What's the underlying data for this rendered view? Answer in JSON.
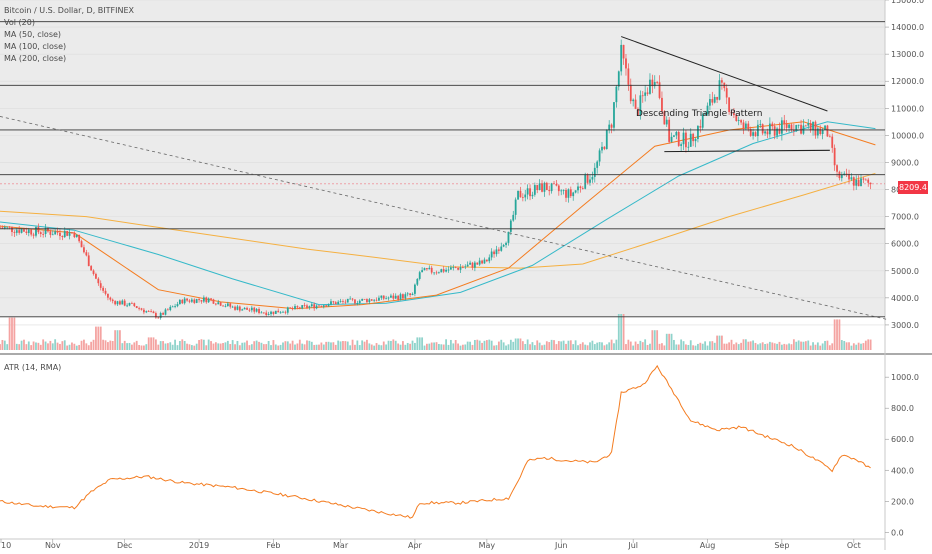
{
  "main_title": "Bitcoin / U.S. Dollar, D, BITFINEX",
  "indicators": [
    "Vol (20)",
    "MA (50, close)",
    "MA (100, close)",
    "MA (200, close)"
  ],
  "atr_title": "ATR (14, RMA)",
  "annotation": "Descending Triangle Pattern",
  "last_price": "8209.4",
  "colors": {
    "ma50": "#f47c20",
    "ma100": "#35b9c9",
    "ma200": "#f5b041",
    "candle_up": "#26a69a",
    "candle_down": "#ef5350",
    "vol_up": "#8fd3cb",
    "vol_down": "#f4a3a1",
    "atr": "#f47c20",
    "price_tag": "#f23645",
    "panel_bg": "#ebebeb"
  },
  "chart_data": [
    {
      "type": "candlestick",
      "title": "Bitcoin / U.S. Dollar, D, BITFINEX",
      "x_tick_labels": [
        "10",
        "Nov",
        "Dec",
        "2019",
        "Feb",
        "Mar",
        "Apr",
        "May",
        "Jun",
        "Jul",
        "Aug",
        "Sep",
        "Oct"
      ],
      "y_tick_labels": [
        "3000.0",
        "4000.0",
        "5000.0",
        "6000.0",
        "7000.0",
        "8000.0",
        "9000.0",
        "10000.0",
        "11000.0",
        "12000.0",
        "13000.0",
        "14000.0",
        "15000.0"
      ],
      "ylim": [
        2000,
        15000
      ],
      "scale": "linear",
      "grid": true,
      "last_price": 8209.4,
      "horizontal_levels": [
        14200,
        11850,
        10200,
        8550,
        6550,
        3300
      ],
      "triangle_top": [
        [
          "2019-06-26",
          13650
        ],
        [
          "2019-09-20",
          10900
        ]
      ],
      "triangle_base": [
        [
          "2019-07-14",
          9400
        ],
        [
          "2019-09-21",
          9450
        ]
      ],
      "trendline_dashed": [
        [
          "2018-10-10",
          10700
        ],
        [
          "2019-10-15",
          3200
        ]
      ],
      "price_path": [
        [
          "2018-10-10",
          6600
        ],
        [
          "2018-10-25",
          6450
        ],
        [
          "2018-11-10",
          6400
        ],
        [
          "2018-11-14",
          5700
        ],
        [
          "2018-11-20",
          4500
        ],
        [
          "2018-11-25",
          3900
        ],
        [
          "2018-12-05",
          3700
        ],
        [
          "2018-12-15",
          3300
        ],
        [
          "2018-12-25",
          3900
        ],
        [
          "2019-01-05",
          3950
        ],
        [
          "2019-01-15",
          3650
        ],
        [
          "2019-01-30",
          3450
        ],
        [
          "2019-02-10",
          3600
        ],
        [
          "2019-02-25",
          3800
        ],
        [
          "2019-03-15",
          3950
        ],
        [
          "2019-03-31",
          4100
        ],
        [
          "2019-04-03",
          4950
        ],
        [
          "2019-04-15",
          5050
        ],
        [
          "2019-04-30",
          5300
        ],
        [
          "2019-05-10",
          6300
        ],
        [
          "2019-05-14",
          7800
        ],
        [
          "2019-05-25",
          8100
        ],
        [
          "2019-06-05",
          7800
        ],
        [
          "2019-06-15",
          8700
        ],
        [
          "2019-06-22",
          10500
        ],
        [
          "2019-06-26",
          13000
        ],
        [
          "2019-07-02",
          10800
        ],
        [
          "2019-07-10",
          12300
        ],
        [
          "2019-07-16",
          9900
        ],
        [
          "2019-07-25",
          9800
        ],
        [
          "2019-08-06",
          11800
        ],
        [
          "2019-08-15",
          10300
        ],
        [
          "2019-08-25",
          10100
        ],
        [
          "2019-09-05",
          10400
        ],
        [
          "2019-09-20",
          10100
        ],
        [
          "2019-09-24",
          8500
        ],
        [
          "2019-10-01",
          8300
        ],
        [
          "2019-10-08",
          8209.4
        ]
      ],
      "ma50": [
        [
          "2018-10-10",
          6650
        ],
        [
          "2018-11-10",
          6400
        ],
        [
          "2018-11-25",
          5500
        ],
        [
          "2018-12-15",
          4300
        ],
        [
          "2019-01-10",
          3850
        ],
        [
          "2019-02-10",
          3600
        ],
        [
          "2019-03-10",
          3750
        ],
        [
          "2019-04-10",
          4100
        ],
        [
          "2019-05-10",
          5100
        ],
        [
          "2019-06-10",
          7400
        ],
        [
          "2019-07-10",
          9600
        ],
        [
          "2019-08-10",
          10200
        ],
        [
          "2019-09-10",
          10500
        ],
        [
          "2019-10-10",
          9650
        ]
      ],
      "ma100": [
        [
          "2018-10-10",
          6800
        ],
        [
          "2018-11-10",
          6500
        ],
        [
          "2018-12-15",
          5600
        ],
        [
          "2019-01-15",
          4700
        ],
        [
          "2019-02-20",
          3750
        ],
        [
          "2019-03-20",
          3800
        ],
        [
          "2019-04-20",
          4200
        ],
        [
          "2019-05-20",
          5200
        ],
        [
          "2019-06-20",
          6900
        ],
        [
          "2019-07-20",
          8500
        ],
        [
          "2019-08-20",
          9700
        ],
        [
          "2019-09-20",
          10500
        ],
        [
          "2019-10-10",
          10250
        ]
      ],
      "ma200": [
        [
          "2018-10-10",
          7200
        ],
        [
          "2018-11-15",
          7000
        ],
        [
          "2018-12-15",
          6600
        ],
        [
          "2019-01-15",
          6200
        ],
        [
          "2019-02-15",
          5800
        ],
        [
          "2019-03-15",
          5500
        ],
        [
          "2019-04-15",
          5150
        ],
        [
          "2019-05-15",
          5100
        ],
        [
          "2019-06-10",
          5250
        ],
        [
          "2019-07-10",
          6100
        ],
        [
          "2019-08-10",
          7000
        ],
        [
          "2019-09-10",
          7800
        ],
        [
          "2019-10-10",
          8600
        ]
      ],
      "volume_spikes": [
        [
          "2018-10-15",
          0.9
        ],
        [
          "2018-11-20",
          0.65
        ],
        [
          "2018-11-28",
          0.55
        ],
        [
          "2018-12-12",
          0.35
        ],
        [
          "2018-12-25",
          0.25
        ],
        [
          "2019-04-03",
          0.35
        ],
        [
          "2019-05-14",
          0.32
        ],
        [
          "2019-06-26",
          1.0
        ],
        [
          "2019-07-10",
          0.55
        ],
        [
          "2019-07-16",
          0.45
        ],
        [
          "2019-08-06",
          0.4
        ],
        [
          "2019-09-24",
          0.85
        ]
      ]
    },
    {
      "type": "line",
      "title": "ATR (14, RMA)",
      "y_tick_labels": [
        "0.0",
        "200.0",
        "400.0",
        "600.0",
        "800.0",
        "1000.0"
      ],
      "ylim": [
        -30,
        1130
      ],
      "grid": false,
      "series": [
        {
          "name": "ATR (14, RMA)",
          "points": [
            [
              "2018-10-10",
              200
            ],
            [
              "2018-10-25",
              170
            ],
            [
              "2018-11-10",
              160
            ],
            [
              "2018-11-17",
              260
            ],
            [
              "2018-11-25",
              340
            ],
            [
              "2018-12-10",
              360
            ],
            [
              "2018-12-25",
              320
            ],
            [
              "2019-01-15",
              290
            ],
            [
              "2019-02-10",
              230
            ],
            [
              "2019-03-10",
              150
            ],
            [
              "2019-03-31",
              95
            ],
            [
              "2019-04-03",
              190
            ],
            [
              "2019-04-20",
              190
            ],
            [
              "2019-05-10",
              220
            ],
            [
              "2019-05-14",
              330
            ],
            [
              "2019-05-18",
              460
            ],
            [
              "2019-05-25",
              480
            ],
            [
              "2019-06-05",
              460
            ],
            [
              "2019-06-15",
              450
            ],
            [
              "2019-06-22",
              510
            ],
            [
              "2019-06-26",
              900
            ],
            [
              "2019-07-05",
              950
            ],
            [
              "2019-07-11",
              1070
            ],
            [
              "2019-07-20",
              850
            ],
            [
              "2019-07-25",
              720
            ],
            [
              "2019-08-05",
              660
            ],
            [
              "2019-08-15",
              680
            ],
            [
              "2019-08-25",
              620
            ],
            [
              "2019-09-05",
              560
            ],
            [
              "2019-09-15",
              470
            ],
            [
              "2019-09-22",
              400
            ],
            [
              "2019-09-26",
              500
            ],
            [
              "2019-10-02",
              470
            ],
            [
              "2019-10-08",
              410
            ]
          ]
        }
      ]
    }
  ]
}
